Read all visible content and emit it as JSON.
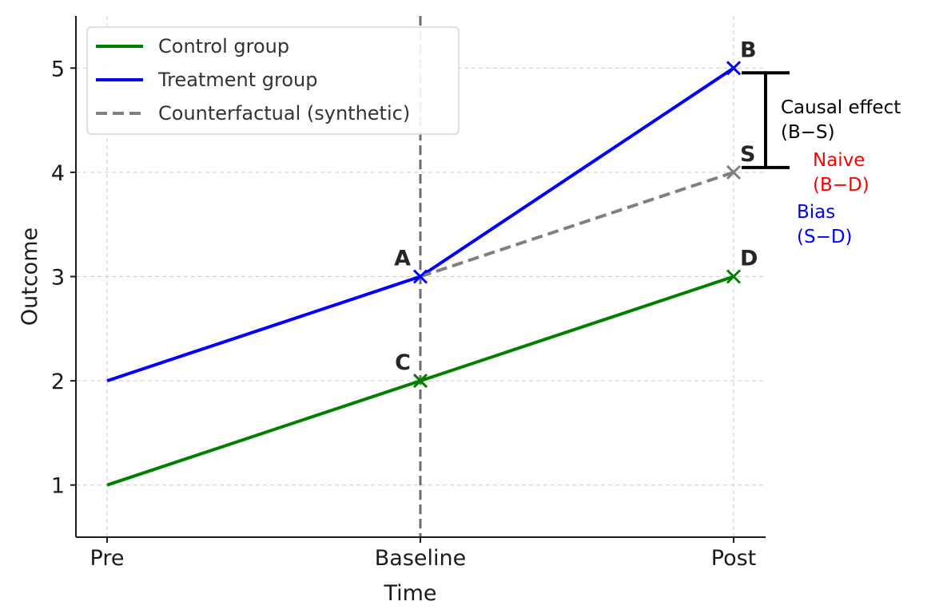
{
  "chart_data": {
    "type": "line",
    "title": "",
    "xlabel": "Time",
    "ylabel": "Outcome",
    "categories": [
      "Pre",
      "Baseline",
      "Post"
    ],
    "ylim": [
      0.5,
      5.5
    ],
    "yticks": [
      1,
      2,
      3,
      4,
      5
    ],
    "grid": true,
    "legend_position": "top-left",
    "vline_at": "Baseline",
    "series": [
      {
        "name": "Control group",
        "color": "#008000",
        "style": "solid",
        "points": [
          {
            "x": "Pre",
            "y": 1
          },
          {
            "x": "Baseline",
            "y": 2
          },
          {
            "x": "Post",
            "y": 3
          }
        ],
        "markers": [
          "Baseline",
          "Post"
        ]
      },
      {
        "name": "Treatment group",
        "color": "#0000ff",
        "style": "solid",
        "points": [
          {
            "x": "Pre",
            "y": 2
          },
          {
            "x": "Baseline",
            "y": 3
          },
          {
            "x": "Post",
            "y": 5
          }
        ],
        "markers": [
          "Baseline",
          "Post"
        ]
      },
      {
        "name": "Counterfactual (synthetic)",
        "color": "#808080",
        "style": "dashed",
        "points": [
          {
            "x": "Baseline",
            "y": 3
          },
          {
            "x": "Post",
            "y": 4
          }
        ],
        "markers": [
          "Post"
        ]
      }
    ],
    "point_labels": [
      {
        "text": "A",
        "x": "Baseline",
        "y": 3,
        "side": "left"
      },
      {
        "text": "B",
        "x": "Post",
        "y": 5,
        "side": "right"
      },
      {
        "text": "C",
        "x": "Baseline",
        "y": 2,
        "side": "left"
      },
      {
        "text": "D",
        "x": "Post",
        "y": 3,
        "side": "right"
      },
      {
        "text": "S",
        "x": "Post",
        "y": 4,
        "side": "right"
      }
    ],
    "bracket": {
      "x": "Post",
      "y_low": 4,
      "y_high": 5,
      "color": "#000000"
    },
    "annotations": [
      {
        "lines": [
          "Causal effect",
          "(B−S)"
        ],
        "color": "#000000"
      },
      {
        "lines": [
          "Naive",
          "(B−D)"
        ],
        "color": "#ff0000"
      },
      {
        "lines": [
          "Bias",
          "(S−D)"
        ],
        "color": "#0000ff"
      }
    ]
  }
}
